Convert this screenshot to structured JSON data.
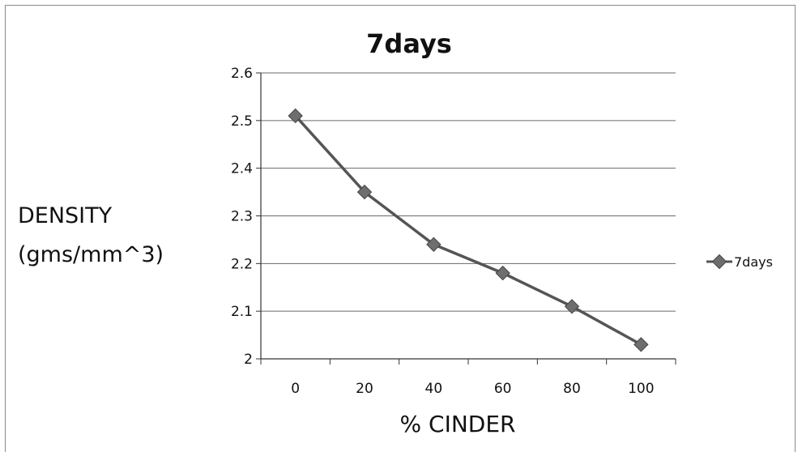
{
  "chart_data": {
    "type": "line",
    "title": "7days",
    "xlabel": "% CINDER",
    "ylabel_lines": [
      "DENSITY",
      "(gms/mm^3)"
    ],
    "categories": [
      "0",
      "20",
      "40",
      "60",
      "80",
      "100"
    ],
    "yticks": [
      "2.6",
      "2.5",
      "2.4",
      "2.3",
      "2.2",
      "2.1",
      "2"
    ],
    "ylim": [
      2,
      2.6
    ],
    "grid": true,
    "legend_position": "right",
    "series": [
      {
        "name": "7days",
        "values": [
          2.51,
          2.35,
          2.24,
          2.18,
          2.11,
          2.03
        ]
      }
    ],
    "colors": {
      "line": "#555555",
      "marker": "#6e6e6e",
      "grid": "#6a6a6a",
      "axis": "#333333"
    }
  }
}
